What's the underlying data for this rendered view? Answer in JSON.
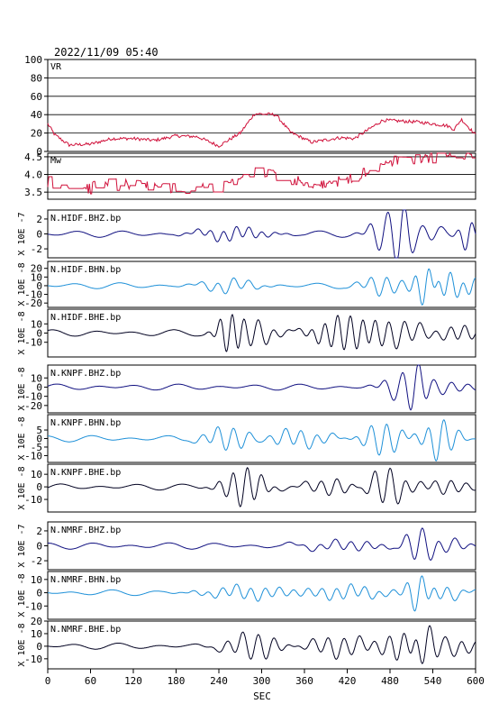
{
  "timestamp": "2022/11/09 05:40",
  "x_axis": {
    "label": "SEC",
    "ticks": [
      0,
      60,
      120,
      180,
      240,
      300,
      360,
      420,
      480,
      540,
      600
    ],
    "range": [
      0,
      600
    ]
  },
  "colors": {
    "vr": "#d0103a",
    "bhz": "#101080",
    "bhn": "#1e90d8",
    "bhe": "#000020",
    "frame": "#000000"
  },
  "chart_data": [
    {
      "type": "line",
      "name": "VR",
      "label": "VR",
      "ylim": [
        0,
        100
      ],
      "yticks": [
        0,
        20,
        40,
        60,
        80,
        100
      ],
      "grid": true,
      "color": "#d0103a",
      "profile": [
        [
          0,
          30
        ],
        [
          10,
          18
        ],
        [
          30,
          7
        ],
        [
          60,
          8
        ],
        [
          90,
          14
        ],
        [
          120,
          14
        ],
        [
          150,
          12
        ],
        [
          180,
          17
        ],
        [
          210,
          16
        ],
        [
          240,
          6
        ],
        [
          270,
          20
        ],
        [
          290,
          41
        ],
        [
          320,
          40
        ],
        [
          340,
          21
        ],
        [
          370,
          10
        ],
        [
          410,
          15
        ],
        [
          430,
          14
        ],
        [
          470,
          34
        ],
        [
          520,
          32
        ],
        [
          560,
          28
        ],
        [
          570,
          24
        ],
        [
          580,
          35
        ],
        [
          600,
          18
        ]
      ]
    },
    {
      "type": "line",
      "name": "Mw",
      "label": "Mw",
      "ylim": [
        3.3,
        4.6
      ],
      "yticks": [
        3.5,
        4.0,
        4.5
      ],
      "yticklabels": [
        "3.5",
        "4.0",
        "4.5"
      ],
      "grid": true,
      "color": "#d0103a",
      "profile": [
        [
          0,
          3.8
        ],
        [
          40,
          3.55
        ],
        [
          80,
          3.7
        ],
        [
          120,
          3.75
        ],
        [
          160,
          3.6
        ],
        [
          200,
          3.6
        ],
        [
          240,
          3.55
        ],
        [
          270,
          3.9
        ],
        [
          300,
          4.1
        ],
        [
          340,
          3.9
        ],
        [
          380,
          3.65
        ],
        [
          420,
          3.9
        ],
        [
          460,
          4.2
        ],
        [
          500,
          4.45
        ],
        [
          560,
          4.5
        ],
        [
          600,
          4.45
        ]
      ]
    }
  ],
  "trace_groups": [
    {
      "exponent_label": "X 10E -7",
      "traces": [
        {
          "label": "N.HIDF.BHZ.bp",
          "kind": "bhz",
          "ylim": [
            -3.2,
            3.2
          ],
          "yticks": [
            2,
            0,
            -2
          ],
          "yticklabels": [
            "2",
            "0",
            "-2"
          ]
        },
        {
          "label": "N.HIDF.BHN.bp",
          "kind": "bhn",
          "ylim": [
            -25,
            28
          ],
          "yticks": [
            20,
            10,
            0,
            -10,
            -20
          ],
          "yticklabels": [
            "20",
            "10",
            "0",
            "-10",
            "-20"
          ]
        },
        {
          "label": "N.HIDF.BHE.bp",
          "kind": "bhe",
          "ylim": [
            -26,
            26
          ],
          "yticks": [
            10,
            0,
            -10
          ],
          "yticklabels": [
            "10",
            "0",
            "-10"
          ]
        }
      ],
      "axis_notes": [
        "X 10E -7",
        "X 10E -8",
        "X 10E -8"
      ]
    },
    {
      "traces": [
        {
          "label": "N.KNPF.BHZ.bp",
          "kind": "bhz",
          "ylim": [
            -28,
            24
          ],
          "yticks": [
            10,
            0,
            -10,
            -20
          ],
          "yticklabels": [
            "10",
            "0",
            "-10",
            "-20"
          ]
        },
        {
          "label": "N.KNPF.BHN.bp",
          "kind": "bhn",
          "ylim": [
            -14,
            14
          ],
          "yticks": [
            5,
            0,
            -5,
            -10
          ],
          "yticklabels": [
            "5",
            "0",
            "-5",
            "-10"
          ]
        },
        {
          "label": "N.KNPF.BHE.bp",
          "kind": "bhe",
          "ylim": [
            -20,
            18
          ],
          "yticks": [
            10,
            0,
            -10
          ],
          "yticklabels": [
            "10",
            "0",
            "-10"
          ]
        }
      ],
      "axis_notes": [
        "X 10E -8",
        "X 10E -8",
        "X 10E -8"
      ]
    },
    {
      "traces": [
        {
          "label": "N.NMRF.BHZ.bp",
          "kind": "bhz",
          "ylim": [
            -3.2,
            3.2
          ],
          "yticks": [
            2,
            0,
            -2
          ],
          "yticklabels": [
            "2",
            "0",
            "-2"
          ]
        },
        {
          "label": "N.NMRF.BHN.bp",
          "kind": "bhn",
          "ylim": [
            -20,
            16
          ],
          "yticks": [
            10,
            0,
            -10
          ],
          "yticklabels": [
            "10",
            "0",
            "-10"
          ]
        },
        {
          "label": "N.NMRF.BHE.bp",
          "kind": "bhe",
          "ylim": [
            -18,
            20
          ],
          "yticks": [
            20,
            10,
            0,
            -10
          ],
          "yticklabels": [
            "20",
            "10",
            "0",
            "-10"
          ]
        }
      ],
      "axis_notes": [
        "X 10E -7",
        "X 10E -8",
        "X 10E -8"
      ]
    }
  ]
}
